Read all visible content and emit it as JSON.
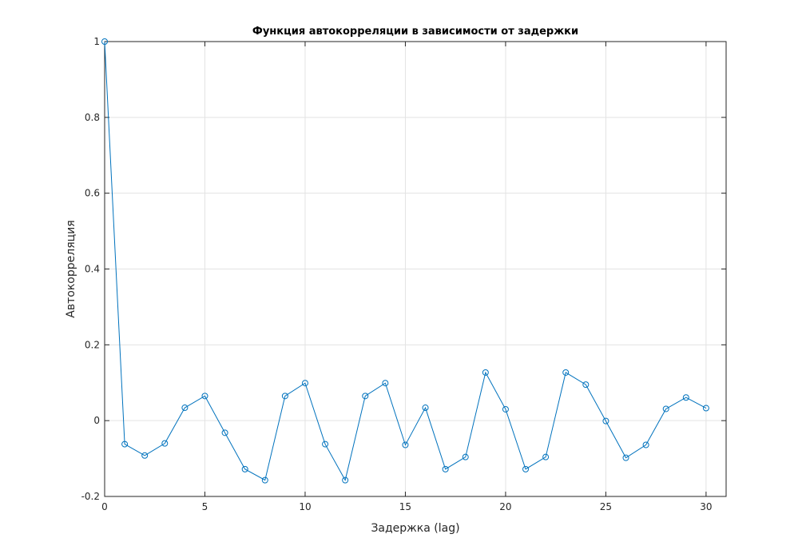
{
  "chart_data": {
    "type": "line",
    "title": "Функция автокорреляции в зависимости от задержки",
    "xlabel": "Задержка (lag)",
    "ylabel": "Автокорреляция",
    "xlim": [
      0,
      31
    ],
    "ylim": [
      -0.2,
      1
    ],
    "xticks": [
      0,
      5,
      10,
      15,
      20,
      25,
      30
    ],
    "yticks": [
      -0.2,
      0,
      0.2,
      0.4,
      0.6,
      0.8,
      1
    ],
    "xtick_labels": [
      "0",
      "5",
      "10",
      "15",
      "20",
      "25",
      "30"
    ],
    "ytick_labels": [
      "-0.2",
      "0",
      "0.2",
      "0.4",
      "0.6",
      "0.8",
      "1"
    ],
    "grid": true,
    "marker": "circle",
    "color": "#0072bd",
    "series": [
      {
        "x": [
          0,
          1,
          2,
          3,
          4,
          5,
          6,
          7,
          8,
          9,
          10,
          11,
          12,
          13,
          14,
          15,
          16,
          17,
          18,
          19,
          20,
          21,
          22,
          23,
          24,
          25,
          26,
          27,
          28,
          29,
          30
        ],
        "values": [
          1.0,
          -0.062,
          -0.092,
          -0.06,
          0.034,
          0.065,
          -0.032,
          -0.128,
          -0.157,
          0.065,
          0.099,
          -0.062,
          -0.157,
          0.065,
          0.099,
          -0.064,
          0.034,
          -0.128,
          -0.096,
          0.127,
          0.03,
          -0.128,
          -0.096,
          0.127,
          0.095,
          -0.001,
          -0.098,
          -0.064,
          0.031,
          0.061,
          0.033
        ]
      }
    ]
  }
}
